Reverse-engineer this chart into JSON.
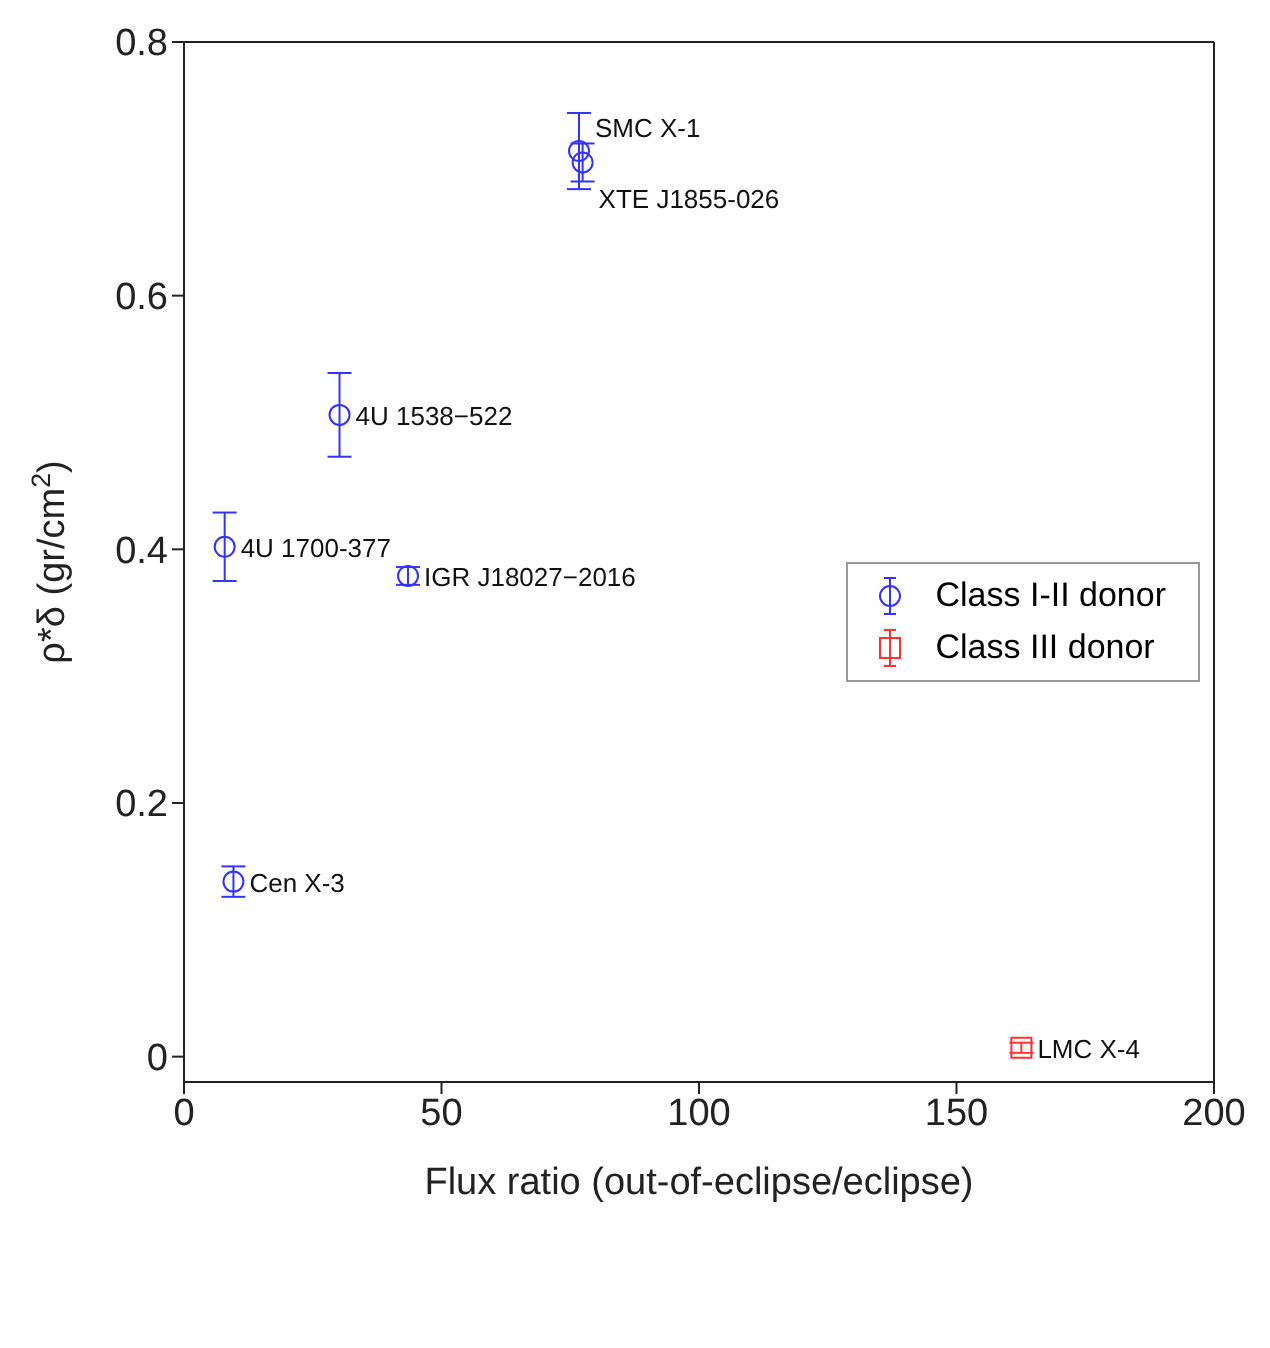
{
  "chart_data": {
    "type": "scatter",
    "xlabel": "Flux ratio (out-of-eclipse/eclipse)",
    "ylabel": "ρ*δ (gr/cm$^{2}$)",
    "xlim": [
      0,
      200
    ],
    "xticks": [
      0,
      50,
      100,
      150,
      200
    ],
    "ylim": [
      -0.02,
      0.8
    ],
    "yticks": [
      0,
      0.2,
      0.4,
      0.6,
      0.8
    ],
    "legend": "right",
    "series": [
      {
        "name": "Class I-II donor",
        "color": "#3333ff",
        "marker": "circle",
        "x": [
          76.7,
          77.4,
          30.2,
          7.9,
          43.5,
          9.6
        ],
        "values": [
          0.714,
          0.705,
          0.506,
          0.402,
          0.379,
          0.138
        ],
        "errors": [
          0.03,
          0.015,
          0.033,
          0.027,
          0.007,
          0.012
        ]
      },
      {
        "name": "Class III donor",
        "color": "#ff3333",
        "marker": "square",
        "x": [
          162.6
        ],
        "values": [
          0.007
        ],
        "errors": [
          0.004
        ]
      }
    ],
    "annotations": [
      {
        "text": "SMC X-1",
        "x": 76.7,
        "y": 0.714
      },
      {
        "text": "XTE J1855-026",
        "x": 77.4,
        "y": 0.705
      },
      {
        "text": "4U 1538−522",
        "x": 30.2,
        "y": 0.506
      },
      {
        "text": "4U 1700-377",
        "x": 7.9,
        "y": 0.402
      },
      {
        "text": "IGR J18027−2016",
        "x": 43.5,
        "y": 0.379
      },
      {
        "text": "Cen X-3",
        "x": 9.6,
        "y": 0.138
      },
      {
        "text": "LMC X-4",
        "x": 162.6,
        "y": 0.007
      }
    ]
  }
}
